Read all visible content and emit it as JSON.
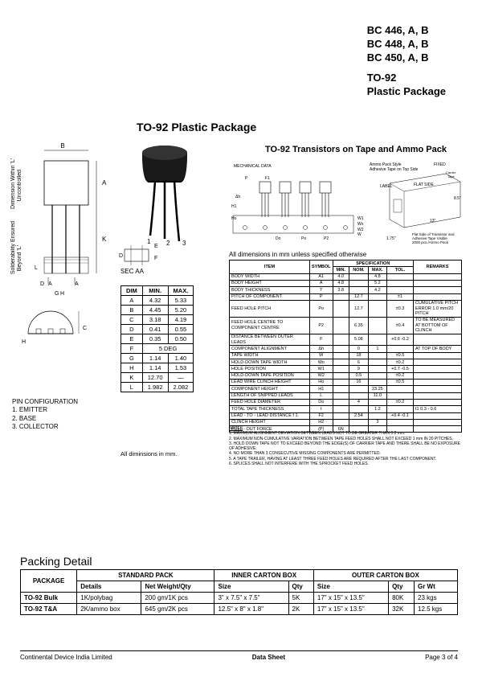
{
  "header": {
    "line1": "BC 446, A, B",
    "line2": "BC 448, A, B",
    "line3": "BC 450, A, B",
    "line4": "TO-92",
    "line5": "Plastic Package"
  },
  "main_title": "TO-92 Plastic Package",
  "sub_title": "TO-92 Transistors on Tape and Ammo Pack",
  "vert_labels": {
    "left1": "Solderability Ensured",
    "left2": "Beyond 'L'",
    "right1": "Dimension Within 'L'",
    "right2": "Uncontrolled"
  },
  "sec_label": "SEC  AA",
  "dim_table": {
    "headers": [
      "DIM",
      "MIN.",
      "MAX."
    ],
    "rows": [
      [
        "A",
        "4.32",
        "5.33"
      ],
      [
        "B",
        "4.45",
        "5.20"
      ],
      [
        "C",
        "3.18",
        "4.19"
      ],
      [
        "D",
        "0.41",
        "0.55"
      ],
      [
        "E",
        "0.35",
        "0.50"
      ],
      [
        "F",
        "5 DEG",
        ""
      ],
      [
        "G",
        "1.14",
        "1.40"
      ],
      [
        "H",
        "1.14",
        "1.53"
      ],
      [
        "K",
        "12.70",
        "—"
      ],
      [
        "L",
        "1.982",
        "2.082"
      ]
    ],
    "merge_row_idx": 5
  },
  "all_dim_note": "All diminsions in mm.",
  "pin_config": {
    "title": "PIN CONFIGURATION",
    "items": [
      "1.   EMITTER",
      "2.   BASE",
      "3.   COLLECTOR"
    ]
  },
  "tape_labels": {
    "mech": "MECHANICAL DATA",
    "ammo": "Ammo Pack Style",
    "adhesive": "Adhesive Tape on Top Side",
    "fixed": "FIXED",
    "carrier": "Carrier Tape",
    "label": "LABEL",
    "flatside": "FLAT SIDE",
    "note1": "Flat Side of Transistor and",
    "note2": "Adhesive Tape Visible",
    "note3": "2000 pcs./Ammo Pack"
  },
  "spec_note": "All dimensions in mm unless specified otherwise",
  "spec_table": {
    "head1": [
      "ITEM",
      "SYMBOL",
      "SPECIFICATION",
      "REMARKS"
    ],
    "head2": [
      "MIN.",
      "NOM.",
      "MAX.",
      "TOL."
    ],
    "rows": [
      {
        "item": "BODY WIDTH",
        "sym": "A1",
        "min": "4.0",
        "nom": "",
        "max": "4.8",
        "tol": "",
        "rem": ""
      },
      {
        "item": "BODY HEIGHT",
        "sym": "A",
        "min": "4.8",
        "nom": "",
        "max": "5.2",
        "tol": "",
        "rem": ""
      },
      {
        "item": "BODY THICKNESS",
        "sym": "T",
        "min": "3.8",
        "nom": "",
        "max": "4.2",
        "tol": "",
        "rem": ""
      },
      {
        "item": "PITCH OF COMPONENT",
        "sym": "P",
        "min": "",
        "nom": "12.7",
        "max": "",
        "tol": "±1",
        "rem": ""
      },
      {
        "item": "FEED HOLE PITCH",
        "sym": "Po",
        "min": "",
        "nom": "12.7",
        "max": "",
        "tol": "±0.3",
        "rem": "CUMULATIVE PITCH ERROR 1.0 mm/20 PITCH"
      },
      {
        "item": "FEED HOLE CENTRE TO COMPONENT CENTRE",
        "sym": "P2",
        "min": "",
        "nom": "6.35",
        "max": "",
        "tol": "±0.4",
        "rem": "TO BE MEASURED AT BOTTOM OF CLINCH"
      },
      {
        "item": "DISTANCE BETWEEN OUTER LEADS",
        "sym": "F",
        "min": "",
        "nom": "5.08",
        "max": "",
        "tol": "+0.6 -0.2",
        "rem": ""
      },
      {
        "item": "COMPONENT ALIGNMENT",
        "sym": "Δh",
        "min": "",
        "nom": "0",
        "max": "1",
        "tol": "",
        "rem": "AT TOP OF BODY"
      },
      {
        "item": "TAPE WIDTH",
        "sym": "W",
        "min": "",
        "nom": "18",
        "max": "",
        "tol": "±0.5",
        "rem": ""
      },
      {
        "item": "HOLD-DOWN TAPE WIDTH",
        "sym": "Wo",
        "min": "",
        "nom": "6",
        "max": "",
        "tol": "±0.2",
        "rem": ""
      },
      {
        "item": "HOLE POSITION",
        "sym": "W1",
        "min": "",
        "nom": "9",
        "max": "",
        "tol": "+0.7 -0.5",
        "rem": ""
      },
      {
        "item": "HOLD-DOWN TAPE POSITION",
        "sym": "W2",
        "min": "",
        "nom": "0.5",
        "max": "",
        "tol": "±0.2",
        "rem": ""
      },
      {
        "item": "LEAD WIRE CLINCH HEIGHT",
        "sym": "Ho",
        "min": "",
        "nom": "16",
        "max": "",
        "tol": "±0.5",
        "rem": ""
      },
      {
        "item": "COMPONENT HEIGHT",
        "sym": "H1",
        "min": "",
        "nom": "",
        "max": "23.25",
        "tol": "",
        "rem": ""
      },
      {
        "item": "LENGTH OF SNIPPED LEADS",
        "sym": "L",
        "min": "",
        "nom": "",
        "max": "11.0",
        "tol": "",
        "rem": ""
      },
      {
        "item": "FEED HOLE DIAMETER",
        "sym": "Do",
        "min": "",
        "nom": "4",
        "max": "",
        "tol": "±0.2",
        "rem": ""
      },
      {
        "item": "TOTAL TAPE THICKNESS",
        "sym": "t",
        "min": "",
        "nom": "",
        "max": "1.2",
        "tol": "",
        "rem": "t1 0.3 - 0.6"
      },
      {
        "item": "LEAD - TO - LEAD DISTANCE f 1.",
        "sym": "F2",
        "min": "",
        "nom": "2.54",
        "max": "",
        "tol": "+0.4 -0.1",
        "rem": ""
      },
      {
        "item": "CLINCH HEIGHT",
        "sym": "H2",
        "min": "",
        "nom": "",
        "max": "3",
        "tol": "",
        "rem": ""
      },
      {
        "item": "PULL - OUT FORCE",
        "sym": "(P)",
        "min": "6N",
        "nom": "",
        "max": "",
        "tol": "",
        "rem": ""
      }
    ]
  },
  "notes": {
    "title": "NOTES",
    "items": [
      "1.  MAXIMUM ALIGNMENT DEVIATION BETWEEN LEADS NOT TO BE GREATER THAN 0.2 mm.",
      "2.  MAXIMUM NON-CUMULATIVE VARIATION BETWEEN TAPE FEED HOLES SHALL NOT EXCEED 1 mm IN 20 PITCHES.",
      "3.  HOLD DOWN TAPE NOT TO EXCEED BEYOND THE EDGE(S) OF CARRIER TAPE AND THERE SHALL BE NO EXPOSURE OF ADHESIVE.",
      "4.  NO MORE THAN 3 CONSECUTIVE MISSING COMPONENTS ARE PERMITTED.",
      "5.  A TAPE TRAILER, HAVING AT LEAST THREE FEED HOLES ARE REQUIRED AFTER THE LAST COMPONENT.",
      "6.  SPLICES SHALL NOT INTERFERE WITH THE SPROCKET FEED HOLES."
    ]
  },
  "packing": {
    "title": "Packing Detail",
    "head1": [
      "PACKAGE",
      "STANDARD PACK",
      "INNER CARTON BOX",
      "OUTER CARTON BOX"
    ],
    "head2": [
      "Details",
      "Net Weight/Qty",
      "Size",
      "Qty",
      "Size",
      "Qty",
      "Gr Wt"
    ],
    "rows": [
      [
        "TO-92 Bulk",
        "1K/polybag",
        "200 gm/1K pcs",
        "3\" x 7.5\" x 7.5\"",
        "5K",
        "17\" x 15\" x 13.5\"",
        "80K",
        "23 kgs"
      ],
      [
        "TO-92 T&A",
        "2K/ammo box",
        "645 gm/2K pcs",
        "12.5\" x 8\" x 1.8\"",
        "2K",
        "17\" x 15\" x 13.5\"",
        "32K",
        "12.5 kgs"
      ]
    ]
  },
  "footer": {
    "left": "Continental Device India Limited",
    "center": "Data Sheet",
    "right": "Page 3 of 4"
  },
  "colors": {
    "line": "#000000",
    "bg": "#ffffff"
  }
}
